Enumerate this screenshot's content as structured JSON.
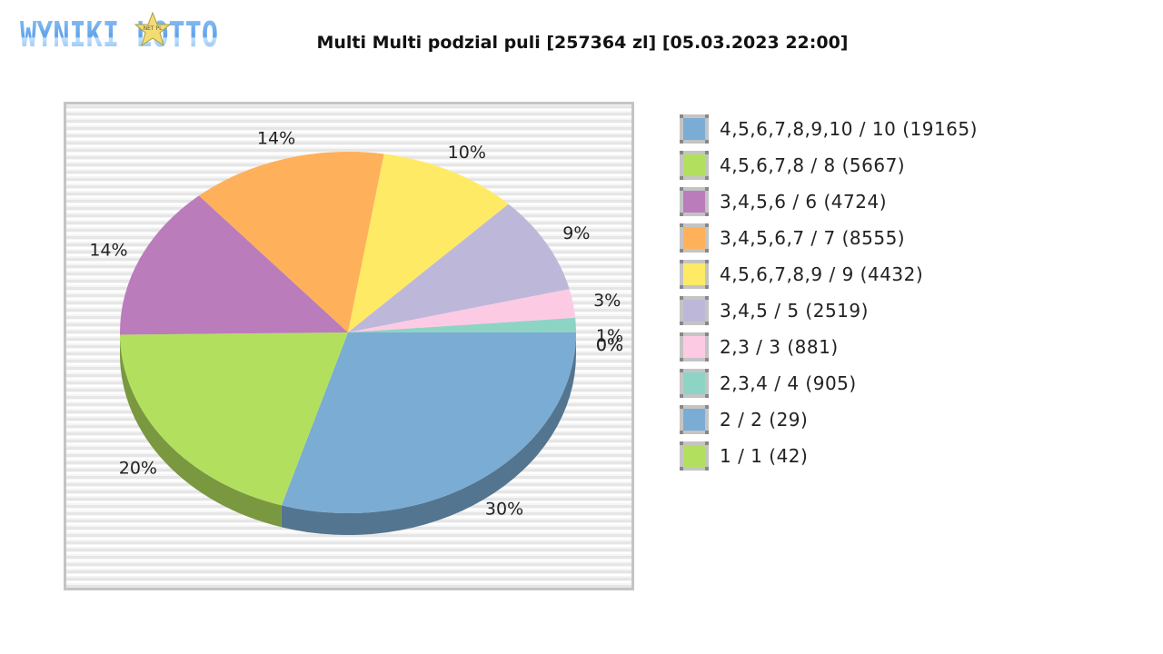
{
  "logo": {
    "text": "WYNIKI LOTTO",
    "star_text": "NET PL"
  },
  "title": "Multi Multi podzial puli [257364 zl] [05.03.2023 22:00]",
  "chart_data": {
    "type": "pie",
    "title": "Multi Multi podzial puli [257364 zl] [05.03.2023 22:00]",
    "style": "3d",
    "legend_position": "right",
    "slices": [
      {
        "label": "4,5,6,7,8,9,10 / 10 (19165)",
        "percent_label": "30%",
        "value": 30,
        "color": "#7bacd4"
      },
      {
        "label": "4,5,6,7,8 / 8 (5667)",
        "percent_label": "20%",
        "value": 20.3,
        "color": "#b2e05e"
      },
      {
        "label": "3,4,5,6 / 6 (4724)",
        "percent_label": "14%",
        "value": 14,
        "color": "#bb7cbb"
      },
      {
        "label": "3,4,5,6,7 / 7 (8555)",
        "percent_label": "14%",
        "value": 14,
        "color": "#feb15a"
      },
      {
        "label": "4,5,6,7,8,9 / 9 (4432)",
        "percent_label": "10%",
        "value": 10,
        "color": "#ffea66"
      },
      {
        "label": "3,4,5 / 5 (2519)",
        "percent_label": "9%",
        "value": 8.8,
        "color": "#bdb8da"
      },
      {
        "label": "2,3 / 3 (881)",
        "percent_label": "3%",
        "value": 2.6,
        "color": "#fdcae4"
      },
      {
        "label": "2,3,4 / 4 (905)",
        "percent_label": "1%",
        "value": 1.3,
        "color": "#8dd4c5"
      },
      {
        "label": "2 / 2 (29)",
        "percent_label": "0%",
        "value": 0,
        "color": "#7bacd4"
      },
      {
        "label": "1 / 1 (42)",
        "percent_label": "0%",
        "value": 0,
        "color": "#b2e05e"
      }
    ]
  }
}
